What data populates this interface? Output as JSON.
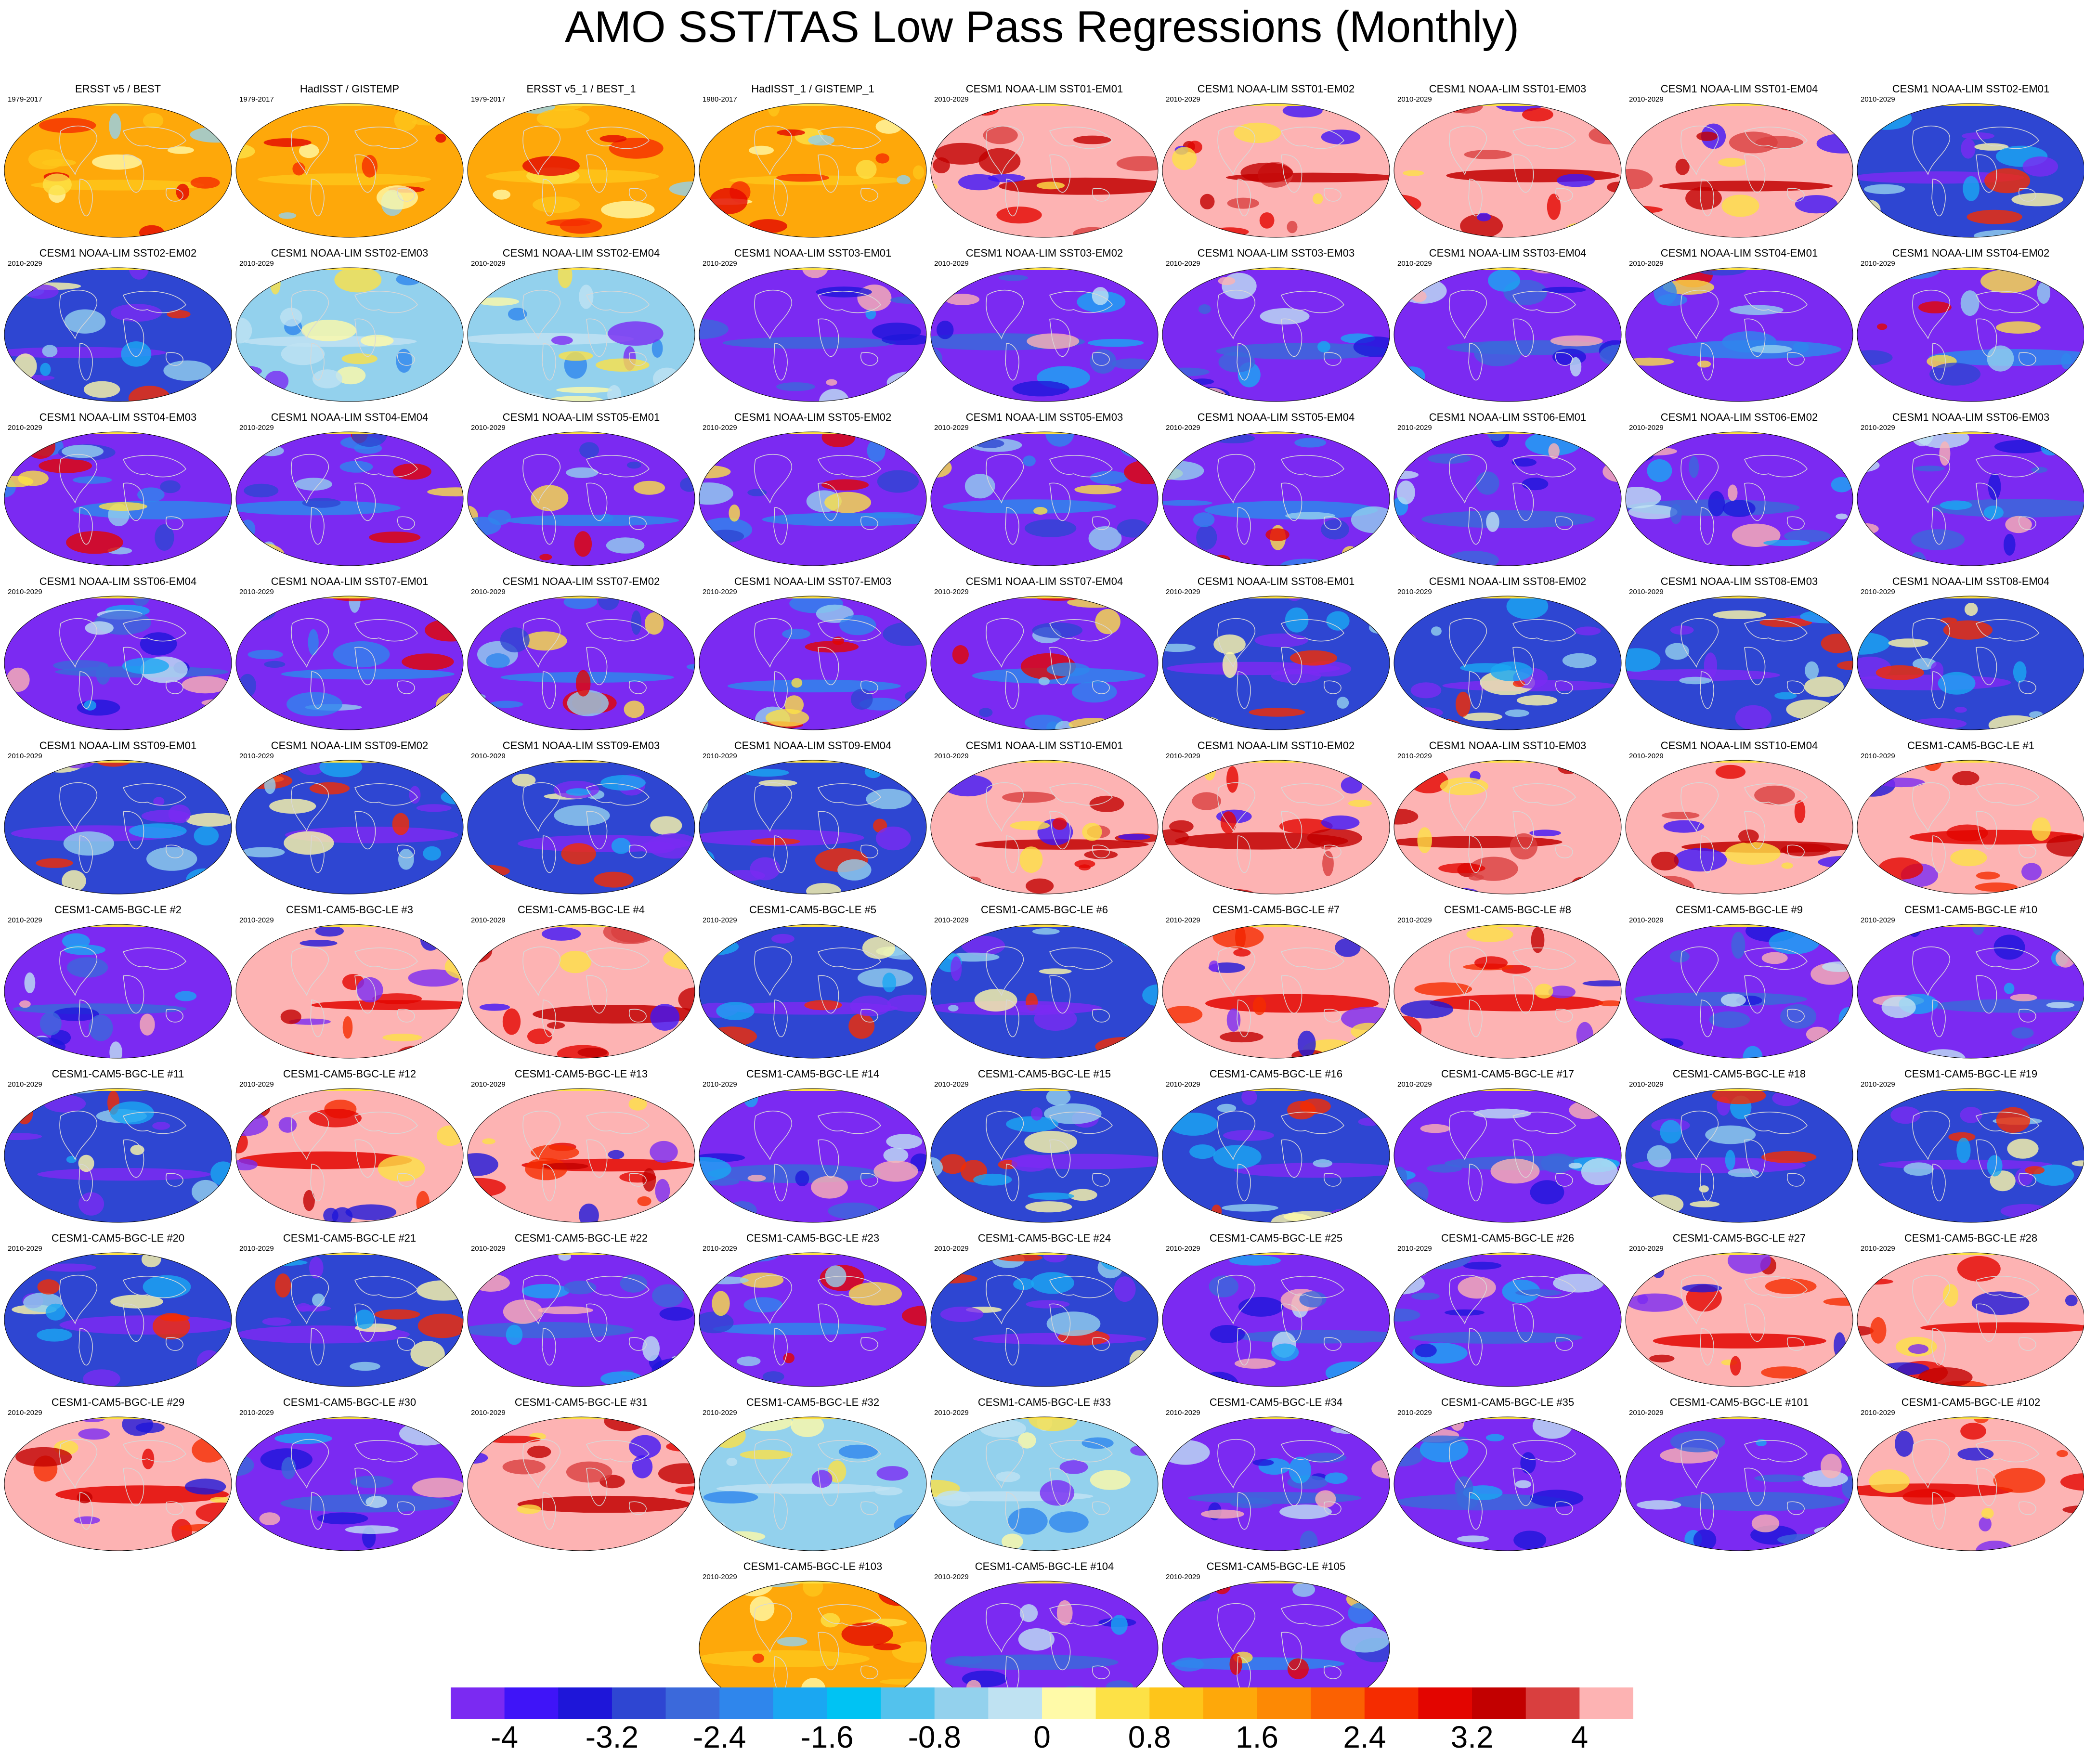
{
  "title": "AMO SST/TAS Low Pass Regressions (Monthly)",
  "colors": {
    "palette": [
      "#7b2af2",
      "#3f14f8",
      "#1e16d9",
      "#2e46d2",
      "#3b69db",
      "#2f86ec",
      "#1aa7f2",
      "#00c3f3",
      "#53c2ed",
      "#93d1ed",
      "#bfe2f2",
      "#fffaa8",
      "#fde146",
      "#fec51a",
      "#fea80a",
      "#fd8904",
      "#fb6102",
      "#f52c00",
      "#e30500",
      "#c20000",
      "#d93f3f",
      "#fdb3b3"
    ],
    "land_outline": "#d8d8d8"
  },
  "colorbar": {
    "labels": [
      "-4",
      "-3.2",
      "-2.4",
      "-1.6",
      "-0.8",
      "0",
      "0.8",
      "1.6",
      "2.4",
      "3.2",
      "4"
    ]
  },
  "panels": [
    {
      "title": "ERSST v5 / BEST",
      "period": "1979-2017",
      "style": "warm-obs"
    },
    {
      "title": "HadISST / GISTEMP",
      "period": "1979-2017",
      "style": "warm-obs"
    },
    {
      "title": "ERSST v5_1 / BEST_1",
      "period": "1979-2017",
      "style": "warm-obs"
    },
    {
      "title": "HadISST_1 / GISTEMP_1",
      "period": "1980-2017",
      "style": "warm-obs"
    },
    {
      "title": "CESM1 NOAA-LIM SST01-EM01",
      "period": "2010-2029",
      "style": "pink"
    },
    {
      "title": "CESM1 NOAA-LIM SST01-EM02",
      "period": "2010-2029",
      "style": "pink"
    },
    {
      "title": "CESM1 NOAA-LIM SST01-EM03",
      "period": "2010-2029",
      "style": "pink"
    },
    {
      "title": "CESM1 NOAA-LIM SST01-EM04",
      "period": "2010-2029",
      "style": "pink"
    },
    {
      "title": "CESM1 NOAA-LIM SST02-EM01",
      "period": "2010-2029",
      "style": "blue-mixed"
    },
    {
      "title": "CESM1 NOAA-LIM SST02-EM02",
      "period": "2010-2029",
      "style": "blue-mixed"
    },
    {
      "title": "CESM1 NOAA-LIM SST02-EM03",
      "period": "2010-2029",
      "style": "lightblue"
    },
    {
      "title": "CESM1 NOAA-LIM SST02-EM04",
      "period": "2010-2029",
      "style": "lightblue"
    },
    {
      "title": "CESM1 NOAA-LIM SST03-EM01",
      "period": "2010-2029",
      "style": "purple"
    },
    {
      "title": "CESM1 NOAA-LIM SST03-EM02",
      "period": "2010-2029",
      "style": "purple"
    },
    {
      "title": "CESM1 NOAA-LIM SST03-EM03",
      "period": "2010-2029",
      "style": "purple"
    },
    {
      "title": "CESM1 NOAA-LIM SST03-EM04",
      "period": "2010-2029",
      "style": "purple"
    },
    {
      "title": "CESM1 NOAA-LIM SST04-EM01",
      "period": "2010-2029",
      "style": "purple-band"
    },
    {
      "title": "CESM1 NOAA-LIM SST04-EM02",
      "period": "2010-2029",
      "style": "purple-band"
    },
    {
      "title": "CESM1 NOAA-LIM SST04-EM03",
      "period": "2010-2029",
      "style": "purple-band"
    },
    {
      "title": "CESM1 NOAA-LIM SST04-EM04",
      "period": "2010-2029",
      "style": "purple-band"
    },
    {
      "title": "CESM1 NOAA-LIM SST05-EM01",
      "period": "2010-2029",
      "style": "purple-band"
    },
    {
      "title": "CESM1 NOAA-LIM SST05-EM02",
      "period": "2010-2029",
      "style": "purple-band"
    },
    {
      "title": "CESM1 NOAA-LIM SST05-EM03",
      "period": "2010-2029",
      "style": "purple-band"
    },
    {
      "title": "CESM1 NOAA-LIM SST05-EM04",
      "period": "2010-2029",
      "style": "purple-band"
    },
    {
      "title": "CESM1 NOAA-LIM SST06-EM01",
      "period": "2010-2029",
      "style": "purple"
    },
    {
      "title": "CESM1 NOAA-LIM SST06-EM02",
      "period": "2010-2029",
      "style": "purple"
    },
    {
      "title": "CESM1 NOAA-LIM SST06-EM03",
      "period": "2010-2029",
      "style": "purple"
    },
    {
      "title": "CESM1 NOAA-LIM SST06-EM04",
      "period": "2010-2029",
      "style": "purple"
    },
    {
      "title": "CESM1 NOAA-LIM SST07-EM01",
      "period": "2010-2029",
      "style": "purple-band"
    },
    {
      "title": "CESM1 NOAA-LIM SST07-EM02",
      "period": "2010-2029",
      "style": "purple-band"
    },
    {
      "title": "CESM1 NOAA-LIM SST07-EM03",
      "period": "2010-2029",
      "style": "purple-band"
    },
    {
      "title": "CESM1 NOAA-LIM SST07-EM04",
      "period": "2010-2029",
      "style": "purple-band"
    },
    {
      "title": "CESM1 NOAA-LIM SST08-EM01",
      "period": "2010-2029",
      "style": "blue-mixed"
    },
    {
      "title": "CESM1 NOAA-LIM SST08-EM02",
      "period": "2010-2029",
      "style": "blue-mixed"
    },
    {
      "title": "CESM1 NOAA-LIM SST08-EM03",
      "period": "2010-2029",
      "style": "blue-mixed"
    },
    {
      "title": "CESM1 NOAA-LIM SST08-EM04",
      "period": "2010-2029",
      "style": "blue-mixed"
    },
    {
      "title": "CESM1 NOAA-LIM SST09-EM01",
      "period": "2010-2029",
      "style": "blue-mixed"
    },
    {
      "title": "CESM1 NOAA-LIM SST09-EM02",
      "period": "2010-2029",
      "style": "blue-mixed"
    },
    {
      "title": "CESM1 NOAA-LIM SST09-EM03",
      "period": "2010-2029",
      "style": "blue-mixed"
    },
    {
      "title": "CESM1 NOAA-LIM SST09-EM04",
      "period": "2010-2029",
      "style": "blue-mixed"
    },
    {
      "title": "CESM1 NOAA-LIM SST10-EM01",
      "period": "2010-2029",
      "style": "pink"
    },
    {
      "title": "CESM1 NOAA-LIM SST10-EM02",
      "period": "2010-2029",
      "style": "pink"
    },
    {
      "title": "CESM1 NOAA-LIM SST10-EM03",
      "period": "2010-2029",
      "style": "pink"
    },
    {
      "title": "CESM1 NOAA-LIM SST10-EM04",
      "period": "2010-2029",
      "style": "pink"
    },
    {
      "title": "CESM1-CAM5-BGC-LE #1",
      "period": "2010-2029",
      "style": "pink-red"
    },
    {
      "title": "CESM1-CAM5-BGC-LE #2",
      "period": "2010-2029",
      "style": "purple"
    },
    {
      "title": "CESM1-CAM5-BGC-LE #3",
      "period": "2010-2029",
      "style": "pink-red"
    },
    {
      "title": "CESM1-CAM5-BGC-LE #4",
      "period": "2010-2029",
      "style": "pink"
    },
    {
      "title": "CESM1-CAM5-BGC-LE #5",
      "period": "2010-2029",
      "style": "blue-mixed"
    },
    {
      "title": "CESM1-CAM5-BGC-LE #6",
      "period": "2010-2029",
      "style": "blue-mixed"
    },
    {
      "title": "CESM1-CAM5-BGC-LE #7",
      "period": "2010-2029",
      "style": "pink-red"
    },
    {
      "title": "CESM1-CAM5-BGC-LE #8",
      "period": "2010-2029",
      "style": "pink-red"
    },
    {
      "title": "CESM1-CAM5-BGC-LE #9",
      "period": "2010-2029",
      "style": "purple"
    },
    {
      "title": "CESM1-CAM5-BGC-LE #10",
      "period": "2010-2029",
      "style": "purple"
    },
    {
      "title": "CESM1-CAM5-BGC-LE #11",
      "period": "2010-2029",
      "style": "blue-mixed"
    },
    {
      "title": "CESM1-CAM5-BGC-LE #12",
      "period": "2010-2029",
      "style": "pink-red"
    },
    {
      "title": "CESM1-CAM5-BGC-LE #13",
      "period": "2010-2029",
      "style": "pink-red"
    },
    {
      "title": "CESM1-CAM5-BGC-LE #14",
      "period": "2010-2029",
      "style": "purple"
    },
    {
      "title": "CESM1-CAM5-BGC-LE #15",
      "period": "2010-2029",
      "style": "blue-mixed"
    },
    {
      "title": "CESM1-CAM5-BGC-LE #16",
      "period": "2010-2029",
      "style": "blue-mixed"
    },
    {
      "title": "CESM1-CAM5-BGC-LE #17",
      "period": "2010-2029",
      "style": "purple"
    },
    {
      "title": "CESM1-CAM5-BGC-LE #18",
      "period": "2010-2029",
      "style": "blue-mixed"
    },
    {
      "title": "CESM1-CAM5-BGC-LE #19",
      "period": "2010-2029",
      "style": "blue-mixed"
    },
    {
      "title": "CESM1-CAM5-BGC-LE #20",
      "period": "2010-2029",
      "style": "blue-mixed"
    },
    {
      "title": "CESM1-CAM5-BGC-LE #21",
      "period": "2010-2029",
      "style": "blue-mixed"
    },
    {
      "title": "CESM1-CAM5-BGC-LE #22",
      "period": "2010-2029",
      "style": "purple"
    },
    {
      "title": "CESM1-CAM5-BGC-LE #23",
      "period": "2010-2029",
      "style": "purple-band"
    },
    {
      "title": "CESM1-CAM5-BGC-LE #24",
      "period": "2010-2029",
      "style": "blue-mixed"
    },
    {
      "title": "CESM1-CAM5-BGC-LE #25",
      "period": "2010-2029",
      "style": "purple"
    },
    {
      "title": "CESM1-CAM5-BGC-LE #26",
      "period": "2010-2029",
      "style": "purple"
    },
    {
      "title": "CESM1-CAM5-BGC-LE #27",
      "period": "2010-2029",
      "style": "pink-red"
    },
    {
      "title": "CESM1-CAM5-BGC-LE #28",
      "period": "2010-2029",
      "style": "pink-red"
    },
    {
      "title": "CESM1-CAM5-BGC-LE #29",
      "period": "2010-2029",
      "style": "pink-red"
    },
    {
      "title": "CESM1-CAM5-BGC-LE #30",
      "period": "2010-2029",
      "style": "purple"
    },
    {
      "title": "CESM1-CAM5-BGC-LE #31",
      "period": "2010-2029",
      "style": "pink"
    },
    {
      "title": "CESM1-CAM5-BGC-LE #32",
      "period": "2010-2029",
      "style": "lightblue"
    },
    {
      "title": "CESM1-CAM5-BGC-LE #33",
      "period": "2010-2029",
      "style": "lightblue"
    },
    {
      "title": "CESM1-CAM5-BGC-LE #34",
      "period": "2010-2029",
      "style": "purple"
    },
    {
      "title": "CESM1-CAM5-BGC-LE #35",
      "period": "2010-2029",
      "style": "purple"
    },
    {
      "title": "CESM1-CAM5-BGC-LE #101",
      "period": "2010-2029",
      "style": "purple"
    },
    {
      "title": "CESM1-CAM5-BGC-LE #102",
      "period": "2010-2029",
      "style": "pink-red"
    },
    {
      "title": "CESM1-CAM5-BGC-LE #103",
      "period": "2010-2029",
      "style": "warm-obs"
    },
    {
      "title": "CESM1-CAM5-BGC-LE #104",
      "period": "2010-2029",
      "style": "purple"
    },
    {
      "title": "CESM1-CAM5-BGC-LE #105",
      "period": "2010-2029",
      "style": "purple-band"
    }
  ]
}
